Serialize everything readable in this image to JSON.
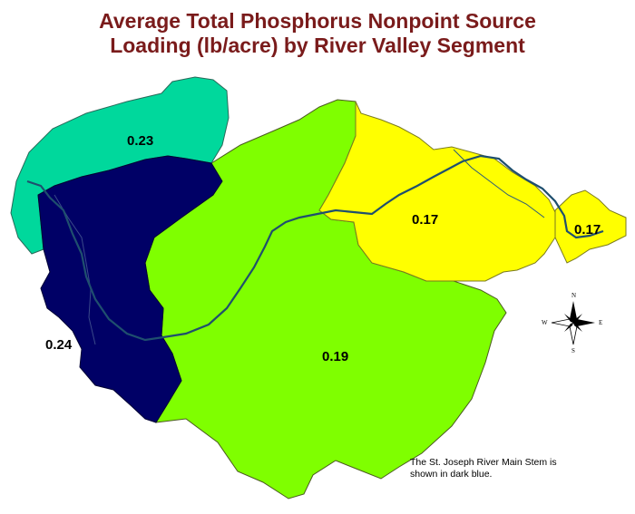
{
  "title": {
    "line1": "Average Total Phosphorus Nonpoint Source",
    "line2": "Loading (lb/acre) by River Valley Segment"
  },
  "segments": [
    {
      "id": "northwest",
      "value": "0.23",
      "color": "#00d89c"
    },
    {
      "id": "west",
      "value": "0.24",
      "color": "#000066"
    },
    {
      "id": "central",
      "value": "0.19",
      "color": "#7fff00"
    },
    {
      "id": "east",
      "value": "0.17",
      "color": "#ffff00"
    },
    {
      "id": "far-east",
      "value": "0.17",
      "color": "#ffff00"
    }
  ],
  "compass": {
    "n": "N",
    "s": "S",
    "e": "E",
    "w": "W"
  },
  "note": {
    "line1": "The St. Joseph River Main Stem is",
    "line2": "shown in dark blue."
  },
  "colors": {
    "title": "#7a1b1b",
    "river": "#1f4f6e",
    "boundary": "#6a7a2a"
  }
}
